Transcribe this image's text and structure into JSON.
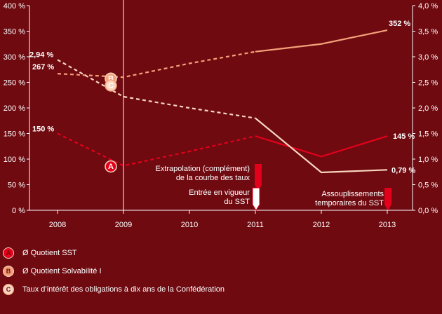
{
  "chart_data": {
    "type": "line",
    "categories": [
      "2008",
      "2009",
      "2010",
      "2011",
      "2012",
      "2013"
    ],
    "y_left": {
      "range": [
        0,
        400
      ],
      "ticks": [
        "0 %",
        "50 %",
        "100 %",
        "150 %",
        "200 %",
        "250 %",
        "300 %",
        "350 %",
        "400 %"
      ]
    },
    "y_right": {
      "range": [
        0,
        4
      ],
      "ticks": [
        "0,0 %",
        "0,5 %",
        "1,0 %",
        "1,5 %",
        "2,0 %",
        "2,5 %",
        "3,0 %",
        "3,5 %",
        "4,0 %"
      ]
    },
    "series": [
      {
        "marker": "A",
        "name": "Ø Quotient SST",
        "axis": "left",
        "color": "#e3001b",
        "values": [
          150,
          87,
          115,
          145,
          105,
          145
        ],
        "dashed_until_index": 3,
        "start_label": "150 %",
        "end_label": "145 %"
      },
      {
        "marker": "B",
        "name": "Ø Quotient Solvabilité I",
        "axis": "left",
        "color": "#f4a07a",
        "values": [
          267,
          260,
          287,
          310,
          325,
          352
        ],
        "dashed_until_index": 3,
        "start_label": "267 %",
        "end_label": "352 %"
      },
      {
        "marker": "C",
        "name": "Taux d’intérêt des obligations à dix ans de la Confédération",
        "axis": "right",
        "color": "#f8d5bf",
        "values": [
          2.94,
          2.22,
          2.0,
          1.8,
          0.74,
          0.79
        ],
        "dashed_until_index": 3,
        "start_label": "2,94 %",
        "end_label": "0,79 %"
      }
    ],
    "annotations": [
      {
        "text": [
          "Extrapolation (complément)",
          "de la courbe des taux"
        ],
        "year": "2011",
        "arrow": "solid"
      },
      {
        "text": [
          "Entrée en vigueur",
          "du SST"
        ],
        "year": "2011",
        "arrow": "outline"
      },
      {
        "text": [
          "Assouplissements",
          "temporaires du SST"
        ],
        "year": "2013",
        "arrow": "solid"
      }
    ],
    "vertical_line_at": "2009",
    "grid": false,
    "legend_position": "bottom-left"
  }
}
